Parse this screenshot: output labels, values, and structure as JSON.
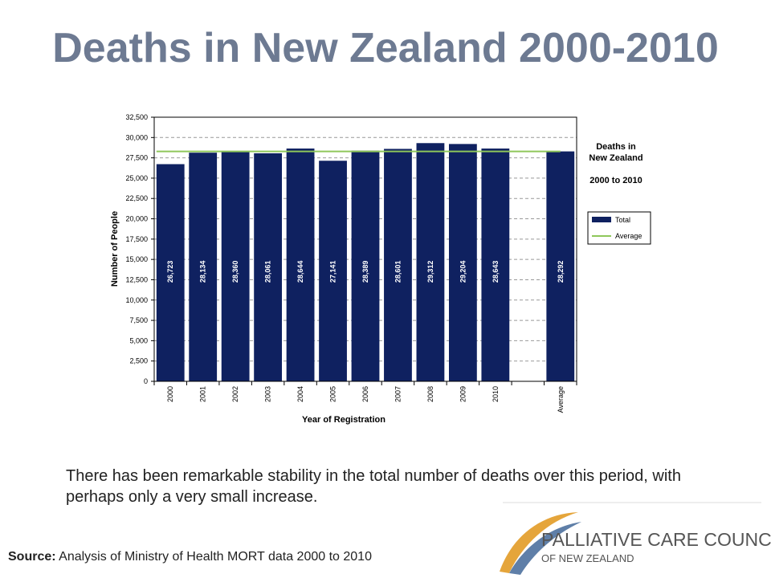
{
  "slide": {
    "title": "Deaths in New Zealand 2000-2010",
    "description": "There has been remarkable stability in the total number of deaths over this period, with perhaps only a very small increase.",
    "source_label": "Source:",
    "source_text": " Analysis of Ministry of Health MORT data 2000 to 2010"
  },
  "logo": {
    "line1": "PALLIATIVE CARE COUNCIL",
    "line2": "OF NEW ZEALAND",
    "colors": {
      "swoosh_gold": "#e5a53b",
      "swoosh_blue": "#5f7fa8",
      "text": "#555555"
    }
  },
  "chart_data": {
    "type": "bar",
    "categories": [
      "2000",
      "2001",
      "2002",
      "2003",
      "2004",
      "2005",
      "2006",
      "2007",
      "2008",
      "2009",
      "2010",
      "",
      "Average"
    ],
    "values": [
      26723,
      28134,
      28360,
      28061,
      28644,
      27141,
      28389,
      28601,
      29312,
      29204,
      28643,
      null,
      28292
    ],
    "data_labels": [
      "26,723",
      "28,134",
      "28,360",
      "28,061",
      "28,644",
      "27,141",
      "28,389",
      "28,601",
      "29,312",
      "29,204",
      "28,643",
      "",
      "28,292"
    ],
    "average_line": 28292,
    "xlabel": "Year of Registration",
    "ylabel": "Number of People",
    "ylim": [
      0,
      32500
    ],
    "yticks": [
      0,
      2500,
      5000,
      7500,
      10000,
      12500,
      15000,
      17500,
      20000,
      22500,
      25000,
      27500,
      30000,
      32500
    ],
    "ytick_labels": [
      "0",
      "2,500",
      "5,000",
      "7,500",
      "10,000",
      "12,500",
      "15,000",
      "17,500",
      "20,000",
      "22,500",
      "25,000",
      "27,500",
      "30,000",
      "32,500"
    ],
    "grid": true,
    "annotation": {
      "line1": "Deaths in",
      "line2": "New Zealand",
      "line3": "2000 to 2010"
    },
    "legend": {
      "placement": "right",
      "entries": [
        "Total",
        "Average"
      ]
    },
    "colors": {
      "bar": "#0f2160",
      "average": "#8fc75a",
      "grid": "#999999"
    }
  }
}
